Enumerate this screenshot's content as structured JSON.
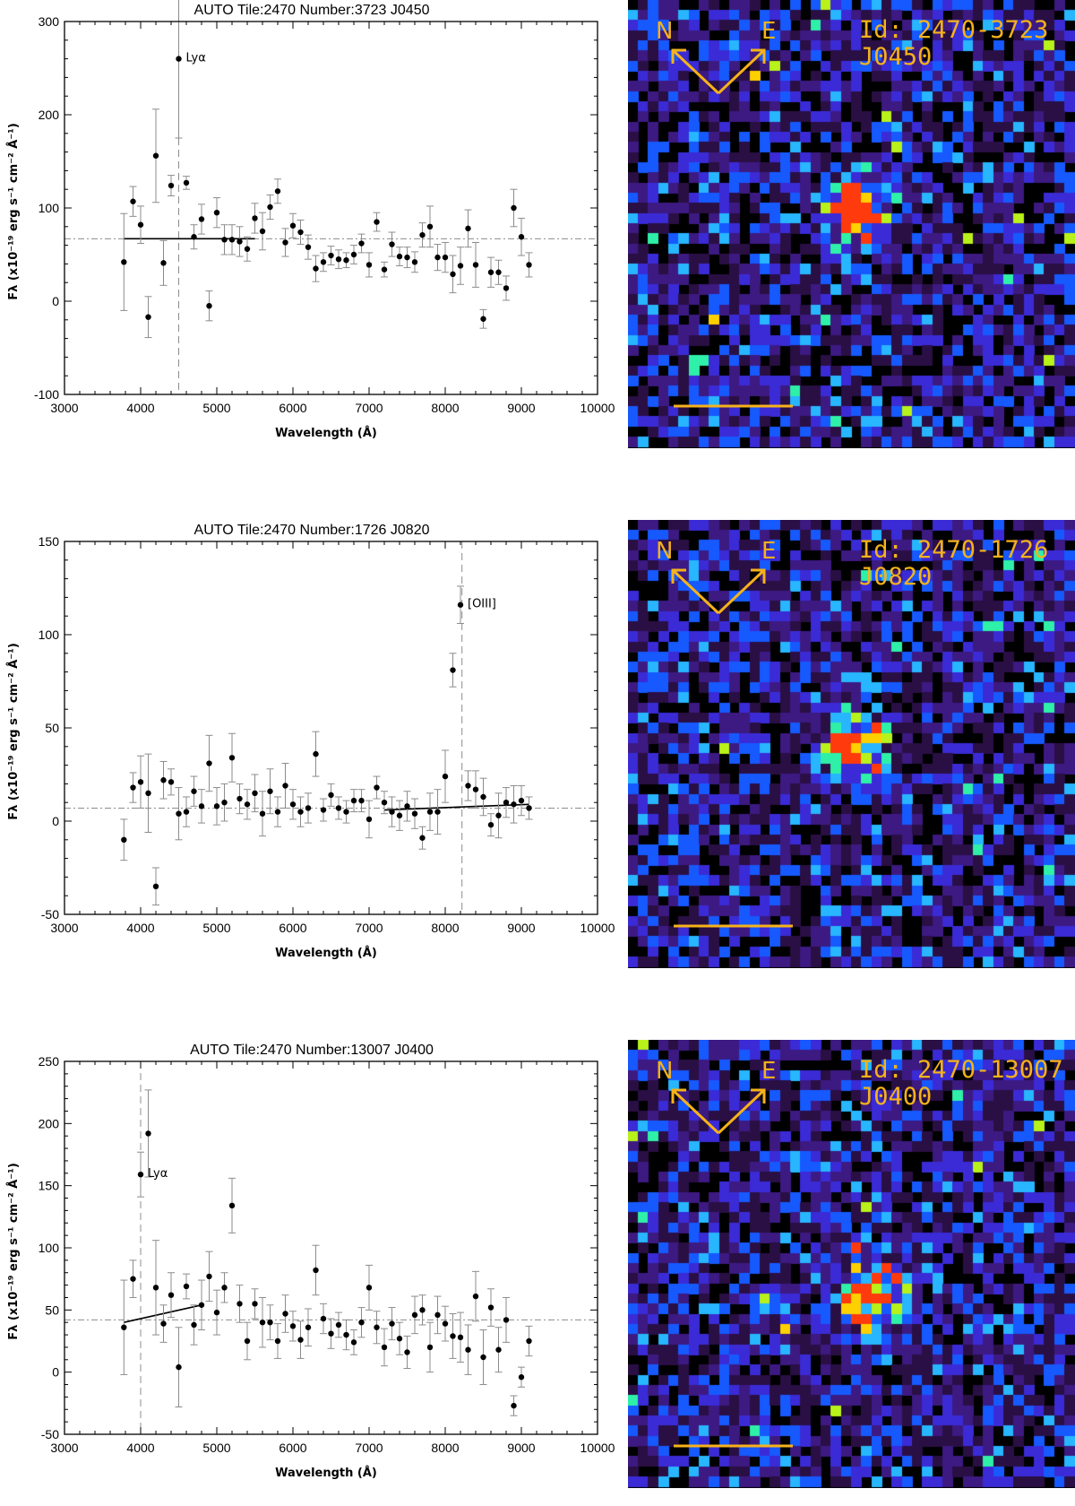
{
  "colors": {
    "point": "#000000",
    "errorbar": "#8c8c8c",
    "refline": "#8c8c8c",
    "marker": "#f5b21a",
    "tile_bg": "#000000"
  },
  "compass": {
    "north": "N",
    "east": "E"
  },
  "panels": [
    {
      "image_id": "Id: 2470-3723",
      "image_code": "J0450",
      "chart_data": {
        "type": "scatter",
        "title": "AUTO Tile:2470 Number:3723 J0450",
        "xlabel": "Wavelength (Å)",
        "ylabel": "Fλ (x10⁻¹⁹ erg s⁻¹ cm⁻² Å⁻¹)",
        "xlim": [
          3000,
          10000
        ],
        "ylim": [
          -100,
          300
        ],
        "xticks": [
          3000,
          4000,
          5000,
          6000,
          7000,
          8000,
          9000,
          10000
        ],
        "yticks": [
          -100,
          0,
          100,
          200,
          300
        ],
        "continuum_level": 67,
        "fit_line": [
          [
            3780,
            67
          ],
          [
            5500,
            67
          ]
        ],
        "line_marker": {
          "x": 4500,
          "label": "Lyα"
        },
        "points": [
          {
            "x": 3780,
            "y": 42,
            "err": 52
          },
          {
            "x": 3900,
            "y": 107,
            "err": 16
          },
          {
            "x": 4000,
            "y": 82,
            "err": 20
          },
          {
            "x": 4100,
            "y": -17,
            "err": 22
          },
          {
            "x": 4200,
            "y": 156,
            "err": 50
          },
          {
            "x": 4300,
            "y": 41,
            "err": 24
          },
          {
            "x": 4400,
            "y": 124,
            "err": 11
          },
          {
            "x": 4500,
            "y": 260,
            "err": 85
          },
          {
            "x": 4600,
            "y": 127,
            "err": 7
          },
          {
            "x": 4700,
            "y": 69,
            "err": 13
          },
          {
            "x": 4800,
            "y": 88,
            "err": 16
          },
          {
            "x": 4900,
            "y": -5,
            "err": 16
          },
          {
            "x": 5000,
            "y": 95,
            "err": 16
          },
          {
            "x": 5100,
            "y": 66,
            "err": 16
          },
          {
            "x": 5200,
            "y": 66,
            "err": 16
          },
          {
            "x": 5300,
            "y": 64,
            "err": 16
          },
          {
            "x": 5400,
            "y": 56,
            "err": 13
          },
          {
            "x": 5500,
            "y": 89,
            "err": 16
          },
          {
            "x": 5600,
            "y": 75,
            "err": 20
          },
          {
            "x": 5700,
            "y": 101,
            "err": 13
          },
          {
            "x": 5800,
            "y": 118,
            "err": 13
          },
          {
            "x": 5900,
            "y": 63,
            "err": 15
          },
          {
            "x": 6000,
            "y": 81,
            "err": 13
          },
          {
            "x": 6100,
            "y": 74,
            "err": 13
          },
          {
            "x": 6200,
            "y": 58,
            "err": 13
          },
          {
            "x": 6300,
            "y": 35,
            "err": 14
          },
          {
            "x": 6400,
            "y": 42,
            "err": 10
          },
          {
            "x": 6500,
            "y": 49,
            "err": 10
          },
          {
            "x": 6600,
            "y": 45,
            "err": 10
          },
          {
            "x": 6700,
            "y": 44,
            "err": 8
          },
          {
            "x": 6800,
            "y": 50,
            "err": 10
          },
          {
            "x": 6900,
            "y": 62,
            "err": 10
          },
          {
            "x": 7000,
            "y": 39,
            "err": 13
          },
          {
            "x": 7100,
            "y": 85,
            "err": 10
          },
          {
            "x": 7200,
            "y": 34,
            "err": 8
          },
          {
            "x": 7300,
            "y": 61,
            "err": 13
          },
          {
            "x": 7400,
            "y": 48,
            "err": 10
          },
          {
            "x": 7500,
            "y": 47,
            "err": 11
          },
          {
            "x": 7600,
            "y": 42,
            "err": 11
          },
          {
            "x": 7700,
            "y": 71,
            "err": 13
          },
          {
            "x": 7800,
            "y": 80,
            "err": 22
          },
          {
            "x": 7900,
            "y": 47,
            "err": 14
          },
          {
            "x": 8000,
            "y": 47,
            "err": 16
          },
          {
            "x": 8100,
            "y": 29,
            "err": 20
          },
          {
            "x": 8200,
            "y": 38,
            "err": 20
          },
          {
            "x": 8300,
            "y": 78,
            "err": 20
          },
          {
            "x": 8400,
            "y": 39,
            "err": 24
          },
          {
            "x": 8500,
            "y": -19,
            "err": 10
          },
          {
            "x": 8600,
            "y": 31,
            "err": 16
          },
          {
            "x": 8700,
            "y": 31,
            "err": 13
          },
          {
            "x": 8800,
            "y": 14,
            "err": 13
          },
          {
            "x": 8900,
            "y": 100,
            "err": 20
          },
          {
            "x": 9000,
            "y": 69,
            "err": 20
          },
          {
            "x": 9100,
            "y": 39,
            "err": 13
          }
        ]
      }
    },
    {
      "image_id": "Id: 2470-1726",
      "image_code": "J0820",
      "chart_data": {
        "type": "scatter",
        "title": "AUTO Tile:2470 Number:1726 J0820",
        "xlabel": "Wavelength (Å)",
        "ylabel": "Fλ (x10⁻¹⁹ erg s⁻¹ cm⁻² Å⁻¹)",
        "xlim": [
          3000,
          10000
        ],
        "ylim": [
          -50,
          150
        ],
        "xticks": [
          3000,
          4000,
          5000,
          6000,
          7000,
          8000,
          9000,
          10000
        ],
        "yticks": [
          -50,
          0,
          50,
          100,
          150
        ],
        "continuum_level": 7,
        "fit_line": [
          [
            7200,
            6
          ],
          [
            9100,
            9
          ]
        ],
        "line_marker": {
          "x": 8220,
          "label": "[OIII]"
        },
        "points": [
          {
            "x": 3780,
            "y": -10,
            "err": 11
          },
          {
            "x": 3900,
            "y": 18,
            "err": 8
          },
          {
            "x": 4000,
            "y": 21,
            "err": 14
          },
          {
            "x": 4100,
            "y": 15,
            "err": 21
          },
          {
            "x": 4200,
            "y": -35,
            "err": 10
          },
          {
            "x": 4300,
            "y": 22,
            "err": 10
          },
          {
            "x": 4400,
            "y": 21,
            "err": 7
          },
          {
            "x": 4500,
            "y": 4,
            "err": 14
          },
          {
            "x": 4600,
            "y": 5,
            "err": 8
          },
          {
            "x": 4700,
            "y": 16,
            "err": 8
          },
          {
            "x": 4800,
            "y": 8,
            "err": 9
          },
          {
            "x": 4900,
            "y": 31,
            "err": 15
          },
          {
            "x": 5000,
            "y": 8,
            "err": 10
          },
          {
            "x": 5100,
            "y": 10,
            "err": 10
          },
          {
            "x": 5200,
            "y": 34,
            "err": 13
          },
          {
            "x": 5300,
            "y": 12,
            "err": 8
          },
          {
            "x": 5400,
            "y": 9,
            "err": 8
          },
          {
            "x": 5500,
            "y": 15,
            "err": 10
          },
          {
            "x": 5600,
            "y": 4,
            "err": 12
          },
          {
            "x": 5700,
            "y": 16,
            "err": 12
          },
          {
            "x": 5800,
            "y": 5,
            "err": 8
          },
          {
            "x": 5900,
            "y": 19,
            "err": 12
          },
          {
            "x": 6000,
            "y": 9,
            "err": 8
          },
          {
            "x": 6100,
            "y": 5,
            "err": 8
          },
          {
            "x": 6200,
            "y": 7,
            "err": 8
          },
          {
            "x": 6300,
            "y": 36,
            "err": 12
          },
          {
            "x": 6400,
            "y": 6,
            "err": 6
          },
          {
            "x": 6500,
            "y": 14,
            "err": 6
          },
          {
            "x": 6600,
            "y": 7,
            "err": 6
          },
          {
            "x": 6700,
            "y": 5,
            "err": 6
          },
          {
            "x": 6800,
            "y": 11,
            "err": 6
          },
          {
            "x": 6900,
            "y": 11,
            "err": 6
          },
          {
            "x": 7000,
            "y": 1,
            "err": 10
          },
          {
            "x": 7100,
            "y": 18,
            "err": 6
          },
          {
            "x": 7200,
            "y": 10,
            "err": 6
          },
          {
            "x": 7300,
            "y": 5,
            "err": 8
          },
          {
            "x": 7400,
            "y": 3,
            "err": 8
          },
          {
            "x": 7500,
            "y": 8,
            "err": 8
          },
          {
            "x": 7600,
            "y": 4,
            "err": 8
          },
          {
            "x": 7700,
            "y": -9,
            "err": 6
          },
          {
            "x": 7800,
            "y": 5,
            "err": 10
          },
          {
            "x": 7900,
            "y": 5,
            "err": 12
          },
          {
            "x": 8000,
            "y": 24,
            "err": 14
          },
          {
            "x": 8100,
            "y": 81,
            "err": 9
          },
          {
            "x": 8200,
            "y": 116,
            "err": 10
          },
          {
            "x": 8300,
            "y": 19,
            "err": 8
          },
          {
            "x": 8400,
            "y": 17,
            "err": 10
          },
          {
            "x": 8500,
            "y": 13,
            "err": 10
          },
          {
            "x": 8600,
            "y": -2,
            "err": 6
          },
          {
            "x": 8700,
            "y": 3,
            "err": 12
          },
          {
            "x": 8800,
            "y": 10,
            "err": 8
          },
          {
            "x": 8900,
            "y": 9,
            "err": 10
          },
          {
            "x": 9000,
            "y": 11,
            "err": 8
          },
          {
            "x": 9100,
            "y": 7,
            "err": 6
          }
        ]
      }
    },
    {
      "image_id": "Id: 2470-13007",
      "image_code": "J0400",
      "chart_data": {
        "type": "scatter",
        "title": "AUTO Tile:2470 Number:13007 J0400",
        "xlabel": "Wavelength (Å)",
        "ylabel": "Fλ (x10⁻¹⁹ erg s⁻¹ cm⁻² Å⁻¹)",
        "xlim": [
          3000,
          10000
        ],
        "ylim": [
          -50,
          250
        ],
        "xticks": [
          3000,
          4000,
          5000,
          6000,
          7000,
          8000,
          9000,
          10000
        ],
        "yticks": [
          -50,
          0,
          50,
          100,
          150,
          200,
          250
        ],
        "continuum_level": 42,
        "fit_line": [
          [
            3780,
            40
          ],
          [
            4800,
            54
          ]
        ],
        "line_marker": {
          "x": 4000,
          "label": "Lyα"
        },
        "points": [
          {
            "x": 3780,
            "y": 36,
            "err": 38
          },
          {
            "x": 3900,
            "y": 75,
            "err": 15
          },
          {
            "x": 4000,
            "y": 159,
            "err": 18
          },
          {
            "x": 4100,
            "y": 192,
            "err": 35
          },
          {
            "x": 4200,
            "y": 68,
            "err": 38
          },
          {
            "x": 4300,
            "y": 39,
            "err": 15
          },
          {
            "x": 4400,
            "y": 62,
            "err": 18
          },
          {
            "x": 4500,
            "y": 4,
            "err": 32
          },
          {
            "x": 4600,
            "y": 69,
            "err": 10
          },
          {
            "x": 4700,
            "y": 38,
            "err": 16
          },
          {
            "x": 4800,
            "y": 54,
            "err": 20
          },
          {
            "x": 4900,
            "y": 77,
            "err": 20
          },
          {
            "x": 5000,
            "y": 48,
            "err": 18
          },
          {
            "x": 5100,
            "y": 68,
            "err": 12
          },
          {
            "x": 5200,
            "y": 134,
            "err": 22
          },
          {
            "x": 5300,
            "y": 55,
            "err": 15
          },
          {
            "x": 5400,
            "y": 25,
            "err": 15
          },
          {
            "x": 5500,
            "y": 55,
            "err": 12
          },
          {
            "x": 5600,
            "y": 40,
            "err": 20
          },
          {
            "x": 5700,
            "y": 40,
            "err": 14
          },
          {
            "x": 5800,
            "y": 25,
            "err": 14
          },
          {
            "x": 5900,
            "y": 47,
            "err": 15
          },
          {
            "x": 6000,
            "y": 37,
            "err": 12
          },
          {
            "x": 6100,
            "y": 26,
            "err": 15
          },
          {
            "x": 6200,
            "y": 36,
            "err": 15
          },
          {
            "x": 6300,
            "y": 82,
            "err": 20
          },
          {
            "x": 6400,
            "y": 43,
            "err": 12
          },
          {
            "x": 6500,
            "y": 31,
            "err": 12
          },
          {
            "x": 6600,
            "y": 38,
            "err": 10
          },
          {
            "x": 6700,
            "y": 30,
            "err": 12
          },
          {
            "x": 6800,
            "y": 24,
            "err": 10
          },
          {
            "x": 6900,
            "y": 40,
            "err": 12
          },
          {
            "x": 7000,
            "y": 68,
            "err": 18
          },
          {
            "x": 7100,
            "y": 36,
            "err": 13
          },
          {
            "x": 7200,
            "y": 20,
            "err": 15
          },
          {
            "x": 7300,
            "y": 39,
            "err": 13
          },
          {
            "x": 7400,
            "y": 27,
            "err": 13
          },
          {
            "x": 7500,
            "y": 16,
            "err": 13
          },
          {
            "x": 7600,
            "y": 46,
            "err": 15
          },
          {
            "x": 7700,
            "y": 50,
            "err": 12
          },
          {
            "x": 7800,
            "y": 20,
            "err": 20
          },
          {
            "x": 7900,
            "y": 46,
            "err": 15
          },
          {
            "x": 8000,
            "y": 39,
            "err": 14
          },
          {
            "x": 8100,
            "y": 29,
            "err": 18
          },
          {
            "x": 8200,
            "y": 28,
            "err": 20
          },
          {
            "x": 8300,
            "y": 18,
            "err": 20
          },
          {
            "x": 8400,
            "y": 61,
            "err": 20
          },
          {
            "x": 8500,
            "y": 12,
            "err": 22
          },
          {
            "x": 8600,
            "y": 52,
            "err": 15
          },
          {
            "x": 8700,
            "y": 18,
            "err": 18
          },
          {
            "x": 8800,
            "y": 42,
            "err": 18
          },
          {
            "x": 8900,
            "y": -27,
            "err": 8
          },
          {
            "x": 9000,
            "y": -4,
            "err": 8
          },
          {
            "x": 9100,
            "y": 25,
            "err": 12
          }
        ]
      }
    }
  ]
}
